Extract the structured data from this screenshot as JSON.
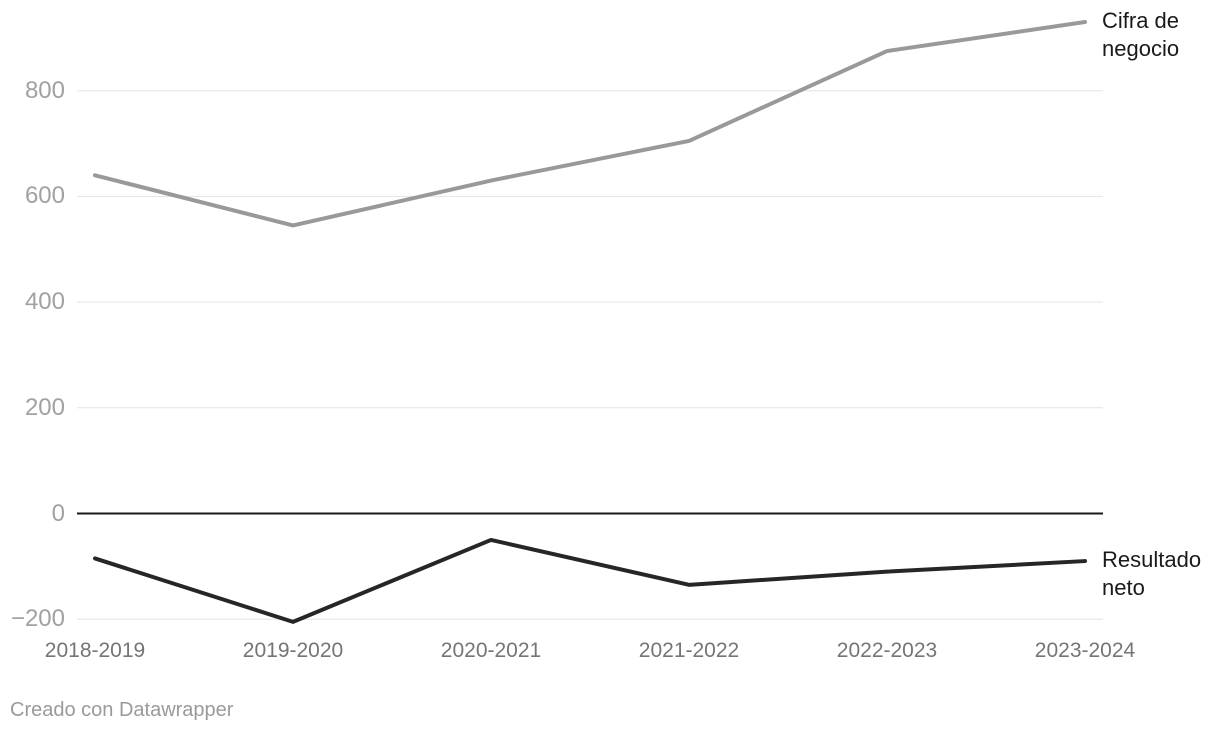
{
  "chart_data": {
    "type": "line",
    "title": "",
    "xlabel": "",
    "ylabel": "",
    "categories": [
      "2018-2019",
      "2019-2020",
      "2020-2021",
      "2021-2022",
      "2022-2023",
      "2023-2024"
    ],
    "series": [
      {
        "name": "Cifra de negocio",
        "values": [
          640,
          545,
          630,
          705,
          875,
          930
        ],
        "color": "#999999"
      },
      {
        "name": "Resultado neto",
        "values": [
          -85,
          -205,
          -50,
          -135,
          -110,
          -90
        ],
        "color": "#262626"
      }
    ],
    "ylim": [
      -260,
      975
    ],
    "y_ticks": [
      {
        "value": 800,
        "label": "800"
      },
      {
        "value": 600,
        "label": "600"
      },
      {
        "value": 400,
        "label": "400"
      },
      {
        "value": 200,
        "label": "200"
      },
      {
        "value": 0,
        "label": "0"
      },
      {
        "value": -200,
        "label": "−200"
      }
    ],
    "grid": true,
    "legend_position": "line-end-labels",
    "colors": {
      "background": "#ffffff",
      "gridline": "#e4e4e4",
      "zero_line": "#1a1a1a",
      "y_tick_text": "#a1a1a1",
      "x_tick_text": "#757575",
      "series_label_text": "#1a1a1a",
      "credit_text": "#9a9a9a"
    }
  },
  "footer": {
    "credit": "Creado con Datawrapper"
  }
}
